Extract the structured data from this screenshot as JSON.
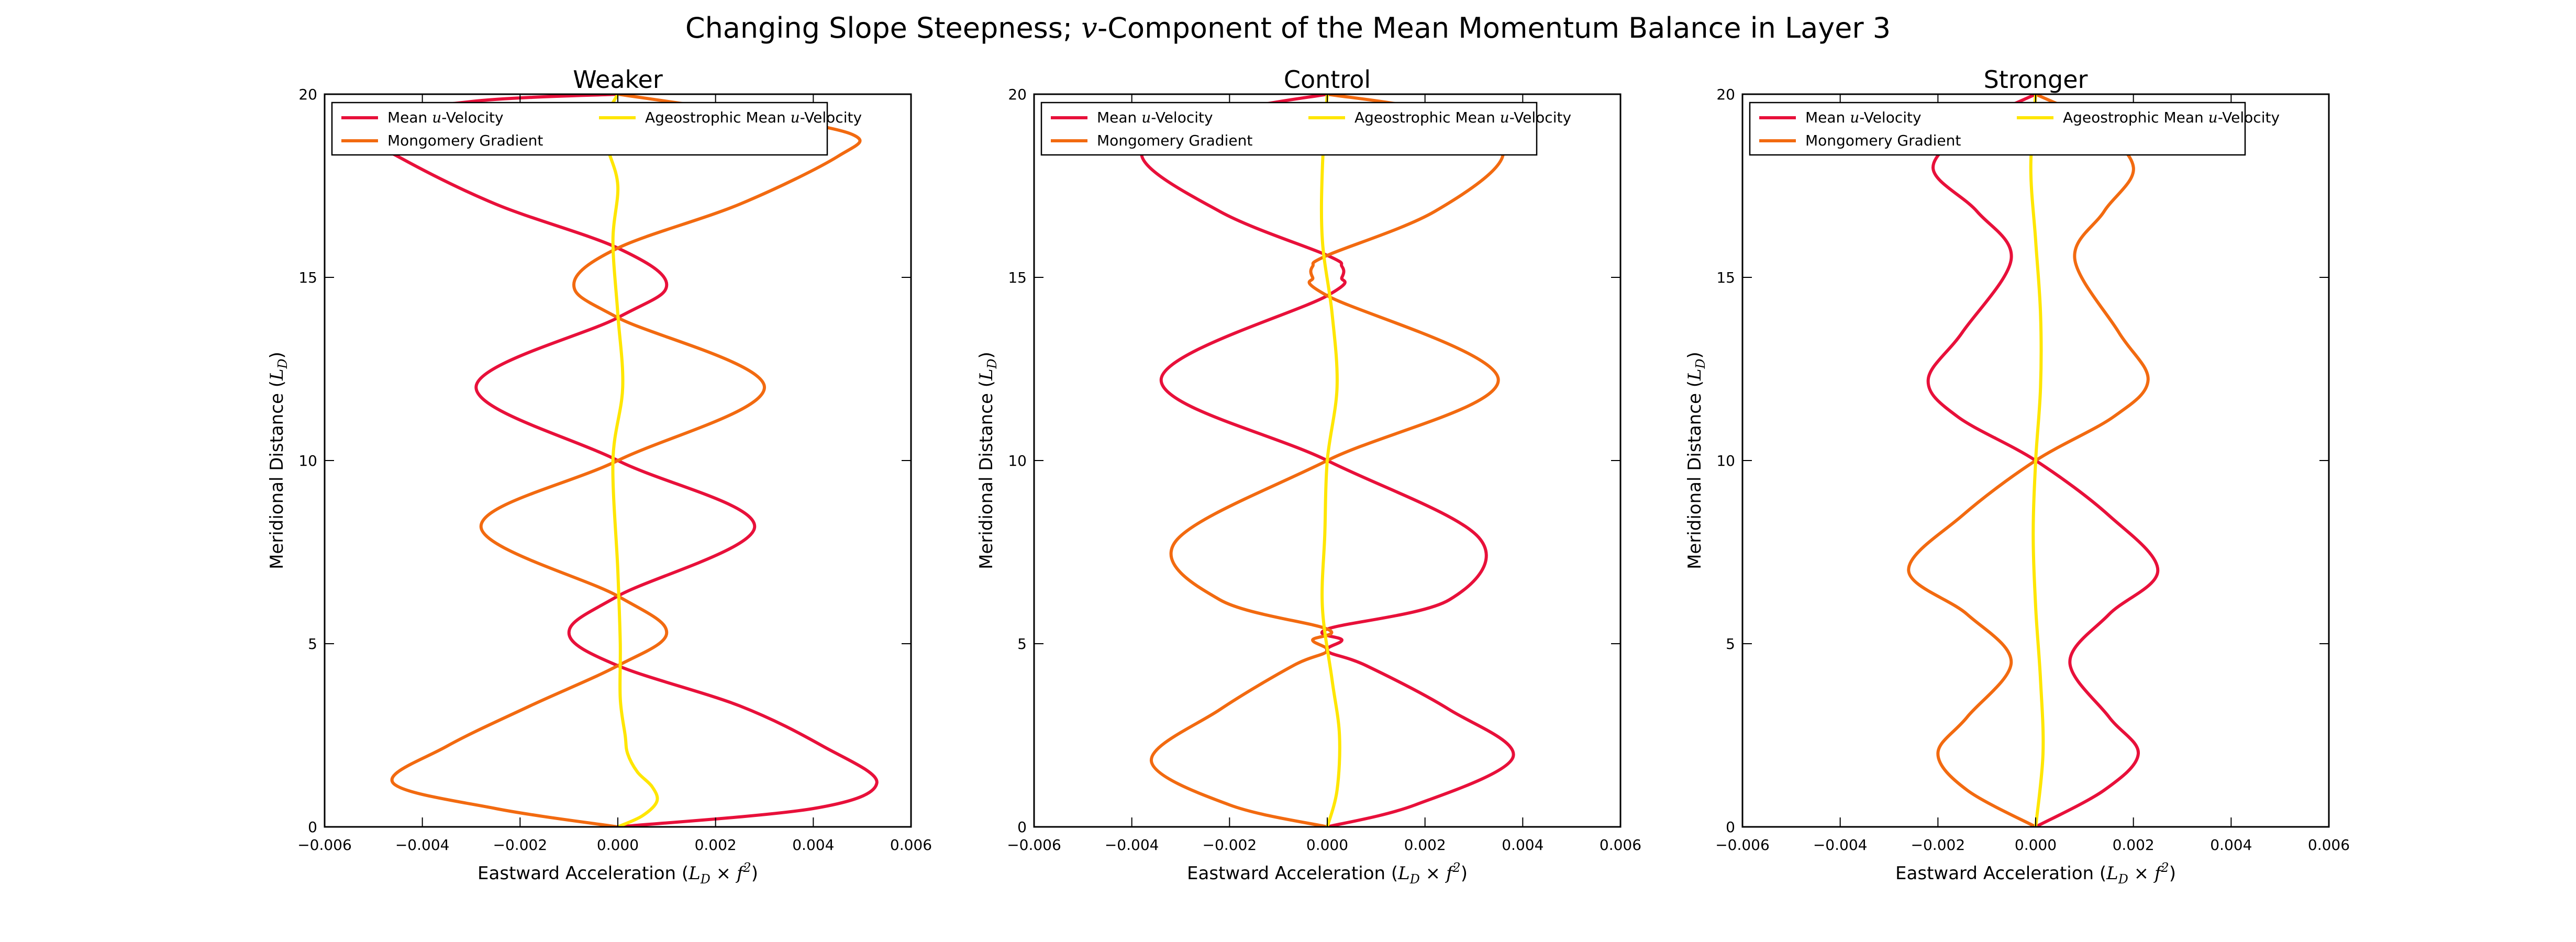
{
  "figure": {
    "title_pre": "Changing Slope Steepness; ",
    "title_var": "v",
    "title_post": "-Component of the Mean Momentum Balance in Layer 3"
  },
  "chart_data": [
    {
      "type": "line",
      "title": "Weaker",
      "xlabel": "Eastward Acceleration (L_D × f^2)",
      "ylabel": "Meridional Distance (L_D)",
      "xlim": [
        -0.006,
        0.006
      ],
      "ylim": [
        0,
        20
      ],
      "xticks": [
        "−0.006",
        "−0.004",
        "−0.002",
        "0.000",
        "0.002",
        "0.004",
        "0.006"
      ],
      "yticks": [
        "0",
        "5",
        "10",
        "15",
        "20"
      ],
      "grid": false,
      "legend_position": "top-left",
      "legend": [
        "Mean u-Velocity",
        "Mongomery Gradient",
        "Ageostrophic Mean u-Velocity"
      ],
      "series": [
        {
          "name": "Mean u-Velocity",
          "color": "#e8103a",
          "y": [
            0,
            0.5,
            1.2,
            2.2,
            3.3,
            4.4,
            5.3,
            6.3,
            8.2,
            10,
            12,
            13.9,
            14.8,
            15.8,
            17,
            18.3,
            19.2,
            19.8,
            20
          ],
          "x": [
            0,
            0.004,
            0.0053,
            0.0042,
            0.0025,
            0.0,
            -0.001,
            0.0,
            0.0028,
            0.0,
            -0.0029,
            0.0,
            0.001,
            0.0,
            -0.0025,
            -0.0045,
            -0.0055,
            -0.003,
            0.0
          ]
        },
        {
          "name": "Mongomery Gradient",
          "color": "#f26a10",
          "y": [
            0,
            0.5,
            1.2,
            2.2,
            3.3,
            4.4,
            5.3,
            6.3,
            8.2,
            10,
            12,
            13.9,
            14.8,
            15.8,
            17,
            18.3,
            18.9,
            19.5,
            20
          ],
          "x": [
            0,
            -0.0025,
            -0.0046,
            -0.0035,
            -0.0018,
            0.0,
            0.001,
            0.0,
            -0.0028,
            0.0,
            0.003,
            0.0,
            -0.0009,
            0.0,
            0.0025,
            0.0045,
            0.0048,
            0.0025,
            0.0
          ]
        },
        {
          "name": "Ageostrophic Mean u-Velocity",
          "color": "#ffe600",
          "y": [
            0,
            0.3,
            0.7,
            1.1,
            1.5,
            2.0,
            2.5,
            3.5,
            5,
            7,
            10,
            12,
            14,
            16,
            17.5,
            18.5,
            19.2,
            20
          ],
          "x": [
            0,
            0.0005,
            0.0008,
            0.0007,
            0.0004,
            0.0002,
            0.00015,
            5e-05,
            5e-05,
            0.0,
            -0.0001,
            0.0001,
            0.0,
            -0.0001,
            0.0,
            -0.0002,
            -0.0003,
            0.0
          ]
        }
      ]
    },
    {
      "type": "line",
      "title": "Control",
      "xlabel": "Eastward Acceleration (L_D × f^2)",
      "ylabel": "Meridional Distance (L_D)",
      "xlim": [
        -0.006,
        0.006
      ],
      "ylim": [
        0,
        20
      ],
      "xticks": [
        "−0.006",
        "−0.004",
        "−0.002",
        "0.000",
        "0.002",
        "0.004",
        "0.006"
      ],
      "yticks": [
        "0",
        "5",
        "10",
        "15",
        "20"
      ],
      "grid": false,
      "legend_position": "top-left",
      "legend": [
        "Mean u-Velocity",
        "Mongomery Gradient",
        "Ageostrophic Mean u-Velocity"
      ],
      "series": [
        {
          "name": "Mean u-Velocity",
          "color": "#e8103a",
          "y": [
            0,
            0.6,
            1.9,
            3.2,
            4.4,
            4.8,
            5.1,
            5.4,
            6.2,
            7.9,
            10,
            12.2,
            14.5,
            15.0,
            15.3,
            15.6,
            16.8,
            18.4,
            19.5,
            20
          ],
          "x": [
            0,
            0.0018,
            0.0038,
            0.0025,
            0.0008,
            0.0,
            0.0003,
            0.0,
            0.0025,
            0.0031,
            0.0,
            -0.0034,
            0.0,
            0.0003,
            0.0003,
            0.0,
            -0.0022,
            -0.0038,
            -0.002,
            0.0
          ]
        },
        {
          "name": "Mongomery Gradient",
          "color": "#f26a10",
          "y": [
            0,
            0.6,
            1.8,
            3.2,
            4.4,
            4.8,
            5.1,
            5.4,
            6.2,
            7.8,
            10,
            12.2,
            14.5,
            15.0,
            15.3,
            15.6,
            16.8,
            18.4,
            19.5,
            20
          ],
          "x": [
            0,
            -0.002,
            -0.0036,
            -0.0022,
            -0.0007,
            0.0,
            -0.0003,
            0.0,
            -0.0022,
            -0.0031,
            0.0,
            0.0035,
            0.0,
            -0.0003,
            -0.0003,
            0.0,
            0.0022,
            0.0036,
            0.0022,
            0.0
          ]
        },
        {
          "name": "Ageostrophic Mean u-Velocity",
          "color": "#ffe600",
          "y": [
            0,
            1,
            2.5,
            4,
            6,
            8,
            10,
            12,
            14,
            16,
            18,
            20
          ],
          "x": [
            0,
            0.0002,
            0.00025,
            0.0001,
            -0.0001,
            -5e-05,
            0.0,
            0.0002,
            0.0001,
            -0.0001,
            -0.0001,
            0.0
          ]
        }
      ]
    },
    {
      "type": "line",
      "title": "Stronger",
      "xlabel": "Eastward Acceleration (L_D × f^2)",
      "ylabel": "Meridional Distance (L_D)",
      "xlim": [
        -0.006,
        0.006
      ],
      "ylim": [
        0,
        20
      ],
      "xticks": [
        "−0.006",
        "−0.004",
        "−0.002",
        "0.000",
        "0.002",
        "0.004",
        "0.006"
      ],
      "yticks": [
        "0",
        "5",
        "10",
        "15",
        "20"
      ],
      "grid": false,
      "legend_position": "top-left",
      "legend": [
        "Mean u-Velocity",
        "Mongomery Gradient",
        "Ageostrophic Mean u-Velocity"
      ],
      "series": [
        {
          "name": "Mean u-Velocity",
          "color": "#e8103a",
          "y": [
            0,
            1,
            2,
            3,
            4.5,
            5.8,
            7,
            8.5,
            10,
            11.2,
            12.2,
            13.5,
            15.5,
            16.8,
            18,
            19.2,
            20
          ],
          "x": [
            0,
            0.0014,
            0.0021,
            0.0015,
            0.0007,
            0.0015,
            0.0025,
            0.0015,
            0.0,
            -0.0016,
            -0.0022,
            -0.0015,
            -0.0005,
            -0.0012,
            -0.0021,
            -0.0012,
            0.0
          ]
        },
        {
          "name": "Mongomery Gradient",
          "color": "#f26a10",
          "y": [
            0,
            1,
            2,
            3,
            4.5,
            5.8,
            7,
            8.5,
            10,
            11.2,
            12.2,
            13.5,
            15.5,
            16.8,
            18,
            19.2,
            20
          ],
          "x": [
            0,
            -0.0014,
            -0.002,
            -0.0014,
            -0.0005,
            -0.0014,
            -0.0026,
            -0.0015,
            0.0,
            0.0016,
            0.0023,
            0.0017,
            0.0008,
            0.0014,
            0.002,
            0.0012,
            0.0
          ]
        },
        {
          "name": "Ageostrophic Mean u-Velocity",
          "color": "#ffe600",
          "y": [
            0,
            2,
            4,
            6,
            8,
            10,
            12,
            14,
            16,
            18,
            20
          ],
          "x": [
            0,
            0.00015,
            0.0001,
            0.0,
            -5e-05,
            0.0,
            0.0001,
            0.0001,
            0.0,
            -0.0001,
            0.0
          ]
        }
      ]
    }
  ]
}
